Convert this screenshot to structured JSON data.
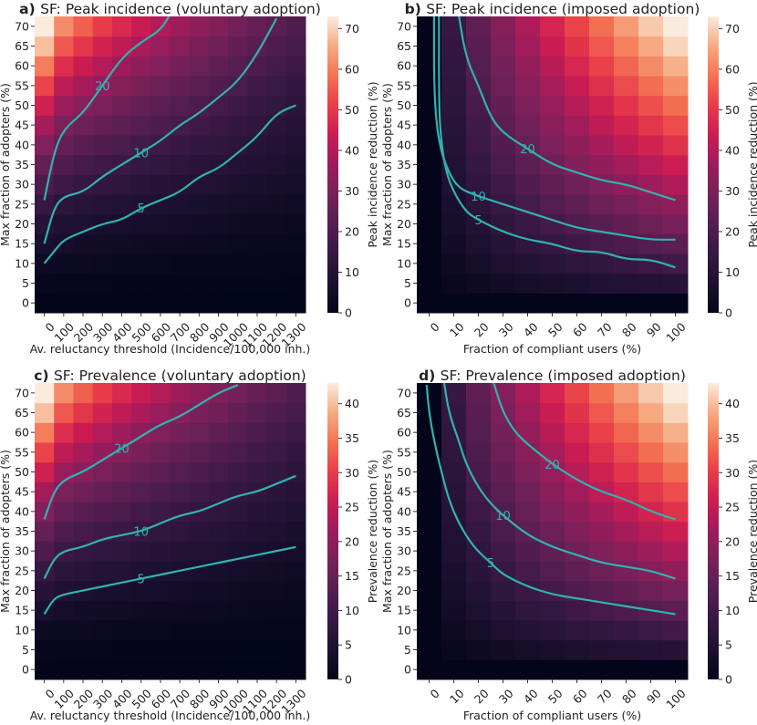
{
  "chart_data": [
    {
      "type": "heatmap",
      "panel_letter": "a)",
      "title": "SF: Peak incidence (voluntary adoption)",
      "xlabel": "Av. reluctancy threshold (Incidence/100,000 inh.)",
      "ylabel": "Max fraction of adopters (%)",
      "colorbar_label": "Peak incidence reduction (%)",
      "x_categories": [
        "0",
        "100",
        "200",
        "300",
        "400",
        "500",
        "600",
        "700",
        "800",
        "900",
        "1000",
        "1100",
        "1200",
        "1300"
      ],
      "y_categories": [
        "0",
        "5",
        "10",
        "15",
        "20",
        "25",
        "30",
        "35",
        "40",
        "45",
        "50",
        "55",
        "60",
        "65",
        "70"
      ],
      "colorbar_ticks": [
        0,
        10,
        20,
        30,
        40,
        50,
        60,
        70
      ],
      "vmin": 0,
      "vmax": 73,
      "field": "voluntary",
      "contours": [
        {
          "label": "5",
          "points": [
            [
              0,
              10
            ],
            [
              50,
              13
            ],
            [
              100,
              16
            ],
            [
              200,
              18
            ],
            [
              300,
              20
            ],
            [
              400,
              21
            ],
            [
              500,
              24
            ],
            [
              600,
              26
            ],
            [
              700,
              28
            ],
            [
              800,
              32
            ],
            [
              900,
              34
            ],
            [
              1000,
              38
            ],
            [
              1100,
              42
            ],
            [
              1200,
              48
            ],
            [
              1300,
              50
            ]
          ]
        },
        {
          "label": "10",
          "points": [
            [
              0,
              15
            ],
            [
              50,
              24
            ],
            [
              100,
              27
            ],
            [
              200,
              28
            ],
            [
              300,
              32
            ],
            [
              400,
              35
            ],
            [
              500,
              38
            ],
            [
              600,
              41
            ],
            [
              700,
              45
            ],
            [
              800,
              48
            ],
            [
              900,
              52
            ],
            [
              1000,
              56
            ],
            [
              1100,
              63
            ],
            [
              1200,
              72
            ]
          ]
        },
        {
          "label": "20",
          "points": [
            [
              0,
              26
            ],
            [
              50,
              38
            ],
            [
              100,
              44
            ],
            [
              200,
              48
            ],
            [
              300,
              55
            ],
            [
              400,
              62
            ],
            [
              500,
              66
            ],
            [
              600,
              69
            ],
            [
              650,
              73
            ]
          ]
        }
      ]
    },
    {
      "type": "heatmap",
      "panel_letter": "b)",
      "title": "SF: Peak incidence (imposed adoption)",
      "xlabel": "Fraction of compliant users (%)",
      "ylabel": "Max fraction of adopters (%)",
      "colorbar_label": "Peak incidence reduction (%)",
      "x_categories": [
        "0",
        "10",
        "20",
        "30",
        "40",
        "50",
        "60",
        "70",
        "80",
        "90",
        "100"
      ],
      "y_categories": [
        "0",
        "5",
        "10",
        "15",
        "20",
        "25",
        "30",
        "35",
        "40",
        "45",
        "50",
        "55",
        "60",
        "65",
        "70"
      ],
      "colorbar_ticks": [
        0,
        10,
        20,
        30,
        40,
        50,
        60,
        70
      ],
      "vmin": 0,
      "vmax": 73,
      "field": "imposed",
      "contours": [
        {
          "label": "5",
          "points": [
            [
              4,
              73
            ],
            [
              4,
              50
            ],
            [
              5,
              40
            ],
            [
              7,
              33
            ],
            [
              10,
              28
            ],
            [
              15,
              23
            ],
            [
              20,
              21
            ],
            [
              30,
              18
            ],
            [
              40,
              16
            ],
            [
              50,
              15
            ],
            [
              60,
              13
            ],
            [
              70,
              13
            ],
            [
              80,
              11
            ],
            [
              90,
              11
            ],
            [
              100,
              9
            ]
          ]
        },
        {
          "label": "10",
          "points": [
            [
              2,
              73
            ],
            [
              2,
              55
            ],
            [
              3,
              45
            ],
            [
              5,
              38
            ],
            [
              8,
              33
            ],
            [
              12,
              29
            ],
            [
              20,
              27
            ],
            [
              30,
              25
            ],
            [
              40,
              23
            ],
            [
              50,
              21
            ],
            [
              60,
              19
            ],
            [
              70,
              18
            ],
            [
              80,
              17
            ],
            [
              90,
              16
            ],
            [
              100,
              16
            ]
          ]
        },
        {
          "label": "20",
          "points": [
            [
              12,
              73
            ],
            [
              15,
              62
            ],
            [
              20,
              55
            ],
            [
              25,
              47
            ],
            [
              30,
              43
            ],
            [
              40,
              39
            ],
            [
              50,
              35
            ],
            [
              60,
              33
            ],
            [
              70,
              31
            ],
            [
              80,
              30
            ],
            [
              90,
              28
            ],
            [
              100,
              26
            ]
          ]
        }
      ]
    },
    {
      "type": "heatmap",
      "panel_letter": "c)",
      "title": "SF: Prevalence (voluntary adoption)",
      "xlabel": "Av. reluctancy threshold (Incidence/100,000 inh.)",
      "ylabel": "Max fraction of adopters (%)",
      "colorbar_label": "Prevalence reduction (%)",
      "x_categories": [
        "0",
        "100",
        "200",
        "300",
        "400",
        "500",
        "600",
        "700",
        "800",
        "900",
        "1000",
        "1100",
        "1200",
        "1300"
      ],
      "y_categories": [
        "0",
        "5",
        "10",
        "15",
        "20",
        "25",
        "30",
        "35",
        "40",
        "45",
        "50",
        "55",
        "60",
        "65",
        "70"
      ],
      "colorbar_ticks": [
        0,
        5,
        10,
        15,
        20,
        25,
        30,
        35,
        40
      ],
      "vmin": 0,
      "vmax": 43,
      "field": "voluntary",
      "contours": [
        {
          "label": "5",
          "points": [
            [
              0,
              14
            ],
            [
              50,
              18
            ],
            [
              100,
              19
            ],
            [
              200,
              20
            ],
            [
              300,
              21
            ],
            [
              400,
              22
            ],
            [
              500,
              23
            ],
            [
              600,
              24
            ],
            [
              700,
              25
            ],
            [
              800,
              26
            ],
            [
              900,
              27
            ],
            [
              1000,
              28
            ],
            [
              1100,
              29
            ],
            [
              1200,
              30
            ],
            [
              1300,
              31
            ]
          ]
        },
        {
          "label": "10",
          "points": [
            [
              0,
              23
            ],
            [
              50,
              28
            ],
            [
              100,
              30
            ],
            [
              200,
              31
            ],
            [
              300,
              33
            ],
            [
              400,
              34
            ],
            [
              500,
              35
            ],
            [
              600,
              37
            ],
            [
              700,
              39
            ],
            [
              800,
              40
            ],
            [
              900,
              42
            ],
            [
              1000,
              44
            ],
            [
              1100,
              45
            ],
            [
              1200,
              47
            ],
            [
              1300,
              49
            ]
          ]
        },
        {
          "label": "20",
          "points": [
            [
              0,
              38
            ],
            [
              50,
              45
            ],
            [
              100,
              48
            ],
            [
              200,
              50
            ],
            [
              300,
              53
            ],
            [
              400,
              56
            ],
            [
              500,
              59
            ],
            [
              600,
              62
            ],
            [
              700,
              64
            ],
            [
              800,
              67
            ],
            [
              900,
              70
            ],
            [
              1000,
              72
            ]
          ]
        }
      ]
    },
    {
      "type": "heatmap",
      "panel_letter": "d)",
      "title": "SF: Prevalence (imposed adoption)",
      "xlabel": "Fraction of compliant users (%)",
      "ylabel": "Max fraction of adopters (%)",
      "colorbar_label": "Prevalence reduction (%)",
      "x_categories": [
        "0",
        "10",
        "20",
        "30",
        "40",
        "50",
        "60",
        "70",
        "80",
        "90",
        "100"
      ],
      "y_categories": [
        "0",
        "5",
        "10",
        "15",
        "20",
        "25",
        "30",
        "35",
        "40",
        "45",
        "50",
        "55",
        "60",
        "65",
        "70"
      ],
      "colorbar_ticks": [
        0,
        5,
        10,
        15,
        20,
        25,
        30,
        35,
        40
      ],
      "vmin": 0,
      "vmax": 43,
      "field": "imposed",
      "contours": [
        {
          "label": "5",
          "points": [
            [
              -1,
              72
            ],
            [
              0,
              65
            ],
            [
              2,
              58
            ],
            [
              5,
              50
            ],
            [
              8,
              43
            ],
            [
              12,
              37
            ],
            [
              18,
              31
            ],
            [
              25,
              27
            ],
            [
              30,
              24
            ],
            [
              40,
              21
            ],
            [
              50,
              19
            ],
            [
              60,
              18
            ],
            [
              70,
              17
            ],
            [
              80,
              16
            ],
            [
              90,
              15
            ],
            [
              100,
              14
            ]
          ]
        },
        {
          "label": "10",
          "points": [
            [
              6,
              73
            ],
            [
              8,
              65
            ],
            [
              12,
              58
            ],
            [
              15,
              52
            ],
            [
              20,
              46
            ],
            [
              25,
              42
            ],
            [
              30,
              39
            ],
            [
              40,
              34
            ],
            [
              50,
              31
            ],
            [
              60,
              29
            ],
            [
              70,
              27
            ],
            [
              80,
              26
            ],
            [
              90,
              25
            ],
            [
              100,
              23
            ]
          ]
        },
        {
          "label": "20",
          "points": [
            [
              26,
              73
            ],
            [
              30,
              65
            ],
            [
              35,
              60
            ],
            [
              40,
              57
            ],
            [
              50,
              52
            ],
            [
              60,
              48
            ],
            [
              70,
              45
            ],
            [
              80,
              43
            ],
            [
              90,
              40
            ],
            [
              100,
              38
            ]
          ]
        }
      ]
    }
  ]
}
